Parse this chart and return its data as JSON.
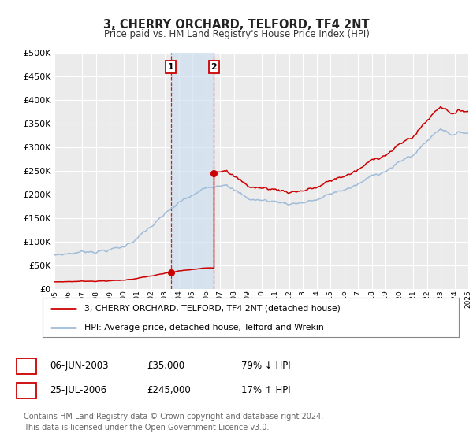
{
  "title": "3, CHERRY ORCHARD, TELFORD, TF4 2NT",
  "subtitle": "Price paid vs. HM Land Registry's House Price Index (HPI)",
  "background_color": "#ffffff",
  "plot_bg_color": "#ebebeb",
  "grid_color": "#ffffff",
  "hpi_color": "#a0bcd8",
  "price_color": "#cc0000",
  "marker_color": "#cc0000",
  "sale1_date": 2003.44,
  "sale2_date": 2006.57,
  "sale1_price": 35000,
  "sale2_price": 245000,
  "legend_line1": "3, CHERRY ORCHARD, TELFORD, TF4 2NT (detached house)",
  "legend_line2": "HPI: Average price, detached house, Telford and Wrekin",
  "table_row1": [
    "1",
    "06-JUN-2003",
    "£35,000",
    "79% ↓ HPI"
  ],
  "table_row2": [
    "2",
    "25-JUL-2006",
    "£245,000",
    "17% ↑ HPI"
  ],
  "footer_line1": "Contains HM Land Registry data © Crown copyright and database right 2024.",
  "footer_line2": "This data is licensed under the Open Government Licence v3.0.",
  "xlim": [
    1995,
    2025
  ],
  "ylim": [
    0,
    500000
  ],
  "yticks": [
    0,
    50000,
    100000,
    150000,
    200000,
    250000,
    300000,
    350000,
    400000,
    450000,
    500000
  ]
}
